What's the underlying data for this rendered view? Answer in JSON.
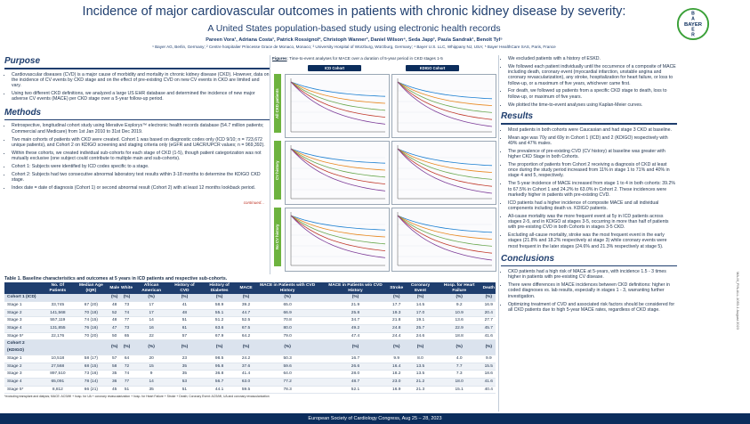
{
  "poster": {
    "title": "Incidence of major cardiovascular outcomes in patients with chronic kidney disease by severity:",
    "subtitle": "A United States population-based study using electronic health records",
    "authors": "Pareen Vora¹, Adriana Costa¹, Patrick Rossignol², Christoph Wanner³, Daniel Wilson⁴, Seda Japp¹, Paula Sandrak¹, Benoît Tyl⁵",
    "affiliations": "¹ Bayer AG, Berlin, Germany; ² Centre hospitalier Princesse Grace de Monaco, Monaco; ³ University Hospital of Würzburg, Würzburg, Germany; ⁴ Bayer U.S. LLC, Whippany NJ, USA; ⁵ Bayer HealthCare SAS, Paris, France",
    "logo_text": "BAYER",
    "side_id": "MA-M_FIN-ALL-1053-1 August 2023",
    "footer": "European Society of Cardiology Congress, Aug 25 – 28, 2023"
  },
  "purpose": {
    "heading": "Purpose",
    "bullets": [
      "Cardiovascular diseases (CVD) is a major cause of morbidity and mortality in chronic kidney disease (CKD). However, data on the incidence of CV events by CKD stage and on the effect of pre-existing CVD on new CV events in CKD are limited and vary.",
      "Using two different CKD definitions, we analyzed a large US EHR database and determined the incidence of new major adverse CV events (MACE) per CKD stage over a 5-year follow-up period."
    ]
  },
  "methods": {
    "heading": "Methods",
    "bullets": [
      "Retrospective, longitudinal cohort study using Merative Explorys™ electronic health records database (54.7 million patients; Commercial and Medicare) from 1st Jan 2010 to 31st Dec 2019.",
      "Two main cohorts of patients with CKD were created. Cohort 1 was based on diagnostic codes only (ICD 9/10; n = 723,672 unique patients), and Cohort 2 on KDIGO screening and staging criteria only (eGFR and UACR/UPCR values; n = 969,392).",
      "Within these cohorts, we created individual sub-cohorts for each stage of CKD (1-5), though patient categorization was not mutually exclusive (one subject could contribute to multiple main and sub-cohorts).",
      "Cohort 1: Subjects were identified by ICD codes specific to a stage.",
      "Cohort 2: Subjects had two consecutive abnormal laboratory test results within 3-18 months to determine the KDIGO CKD stage.",
      "Index date = date of diagnosis (Cohort 1) or second abnormal result (Cohort 2) with at least 12 months lookback period."
    ],
    "continued": "continued..."
  },
  "figure": {
    "caption_label": "Figures",
    "caption_text": ": Time-to-event analyses for MACE over a duration of 5-year period in CKD stages 1-5",
    "col_icd": "ICD Cohort",
    "col_kdigo": "KDIGO Cohort",
    "rows": [
      "All CKD patients",
      "CV history",
      "No CV history"
    ]
  },
  "right_top": {
    "bullets": [
      "We excluded patients with a history of ESKD.",
      "We followed each patient individually until the occurrence of a composite of MACE including death, coronary event (myocardial infarction, unstable angina and coronary revascularization), any stroke, hospitalization for heart failure, or loss to follow-up, or a maximum of five years, whichever came first.",
      "For death, we followed up patients from a specific CKD stage to death, loss to follow-up, or maximum of five years.",
      "We plotted the time-to-event analyses using Kaplan-Meier curves."
    ]
  },
  "results": {
    "heading": "Results",
    "bullets": [
      "Most patients in both cohorts were Caucasian and had stage 3 CKD at baseline.",
      "Mean age was 70y and 69y in Cohort 1 (ICD) and 2 (KDIGO) respectively with 49% and 47% males.",
      "The prevalence of pre-existing CVD (CV history) at baseline was greater with higher CKD Stage in both Cohorts.",
      "The proportion of patients from Cohort 2 receiving a diagnosis of CKD at least once during the study period increased from 11% in stage 1 to 71% and 40% in stage 4 and 5, respectively.",
      "The 5-year incidence of MACE increased from stage 1 to 4 in both cohorts: 39.2% to 67.5% in Cohort 1 and 24.2% to 63.0% in Cohort 2. These incidences were markedly higher in patients with pre-existing CVD.",
      "ICD patients had a higher incidence of composite MACE and all individual components including death vs. KDIGO patients.",
      "All-cause mortality was the more frequent event at 5y in ICD patients across stages 2-5, and in KDIGO at stages 3-5, occurring in more than half of patients with pre-existing CVD in both Cohorts in stages 3-5 CKD.",
      "Excluding all-cause mortality, stroke was the most frequent event in the early stages (21.8% and 18.2% respectively at stage 3) while coronary events were most frequent in the later stages (24.6% and 21.3% respectively at stage 5)."
    ]
  },
  "conclusions": {
    "heading": "Conclusions",
    "bullets": [
      "CKD patients had a high risk of MACE at 5-years, with incidence 1.5 - 3 times higher in patients with pre-existing CV disease.",
      "There were differences in MACE incidences between CKD definitions: higher in coded diagnoses vs. lab results, especially in stages 1 - 3, warranting further investigation.",
      "Optimizing treatment of CVD and associated risk factors should be considered for all CKD patients due to high 5-year MACE rates, regardless of CKD stage."
    ]
  },
  "table": {
    "caption": "Table 1. Baseline characteristics and outcomes at 5 years in ICD patients and respective sub-cohorts.",
    "headers": [
      "",
      "No. Of Patients",
      "Median Age (IQR)",
      "Male",
      "White",
      "African American",
      "History of CVD",
      "History of Diabetes",
      "MACE",
      "MACE in Patients with CVD History",
      "MACE in Patients w/o CVD History",
      "Stroke",
      "Coronary Event",
      "Hosp. for Heart Failure",
      "Death"
    ],
    "groups": [
      {
        "label": "Cohort 1 (ICD)",
        "units": [
          "",
          "",
          "(%)",
          "(%)",
          "(%)",
          "(%)",
          "(%)",
          "(%)",
          "(%)",
          "(%)",
          "(%)",
          "(%)",
          "(%)",
          "(%)"
        ],
        "rows": [
          [
            "Stage 1",
            "33,745",
            "67 (20)",
            "48",
            "73",
            "17",
            "41",
            "58.9",
            "39.2",
            "65.0",
            "21.9",
            "17.7",
            "14.5",
            "9.2",
            "16.9"
          ],
          [
            "Stage 2",
            "141,568",
            "70 (18)",
            "52",
            "74",
            "17",
            "48",
            "55.1",
            "44.7",
            "66.9",
            "25.8",
            "19.3",
            "17.0",
            "10.9",
            "20.4"
          ],
          [
            "Stage 3",
            "557,119",
            "74 (15)",
            "48",
            "77",
            "14",
            "51",
            "51.2",
            "52.5",
            "70.8",
            "34.7",
            "21.8",
            "19.1",
            "13.6",
            "27.7"
          ],
          [
            "Stage 4",
            "131,855",
            "76 (16)",
            "47",
            "73",
            "16",
            "61",
            "63.6",
            "67.5",
            "80.0",
            "49.2",
            "24.8",
            "25.7",
            "22.9",
            "45.7"
          ],
          [
            "Stage 5*",
            "22,176",
            "70 (20)",
            "50",
            "65",
            "22",
            "57",
            "67.9",
            "64.2",
            "79.0",
            "47.4",
            "24.4",
            "24.6",
            "18.8",
            "41.6"
          ]
        ]
      },
      {
        "label": "Cohort 2 (KDIGO)",
        "units": [
          "",
          "",
          "(%)",
          "(%)",
          "(%)",
          "(%)",
          "(%)",
          "(%)",
          "(%)",
          "(%)",
          "(%)",
          "(%)",
          "(%)",
          "(%)"
        ],
        "rows": [
          [
            "Stage 1",
            "10,518",
            "58 (17)",
            "57",
            "64",
            "20",
            "23",
            "98.5",
            "24.2",
            "50.3",
            "16.7",
            "9.9",
            "8.0",
            "4.0",
            "9.9"
          ],
          [
            "Stage 2",
            "27,568",
            "68 (15)",
            "58",
            "72",
            "15",
            "35",
            "95.8",
            "37.6",
            "59.6",
            "26.6",
            "16.4",
            "13.5",
            "7.7",
            "15.5"
          ],
          [
            "Stage 3",
            "897,510",
            "73 (16)",
            "35",
            "74",
            "9",
            "35",
            "36.8",
            "41.4",
            "64.0",
            "28.0",
            "18.2",
            "13.5",
            "7.3",
            "18.6"
          ],
          [
            "Stage 4",
            "65,091",
            "78 (14)",
            "36",
            "77",
            "14",
            "53",
            "56.7",
            "63.0",
            "77.2",
            "48.7",
            "23.0",
            "21.2",
            "18.0",
            "41.6"
          ],
          [
            "Stage 5*",
            "8,812",
            "66 (21)",
            "45",
            "51",
            "35",
            "51",
            "44.1",
            "59.5",
            "78.3",
            "52.1",
            "16.9",
            "21.3",
            "15.1",
            "40.4"
          ]
        ]
      }
    ],
    "footnote": "*excluding transplant and dialysis; MACE: ACS/MI + hosp. for UA + coronary revascularization + hosp. for Heart Failure + Stroke + Death; Coronary Event: ACS/MI, UA and coronary revascularization"
  },
  "colors": {
    "navy": "#1f3e6e",
    "green": "#6db33f",
    "km_lines": [
      "#1b7fd1",
      "#e8871e",
      "#6aa84f",
      "#c0392b",
      "#7d3c98"
    ]
  }
}
